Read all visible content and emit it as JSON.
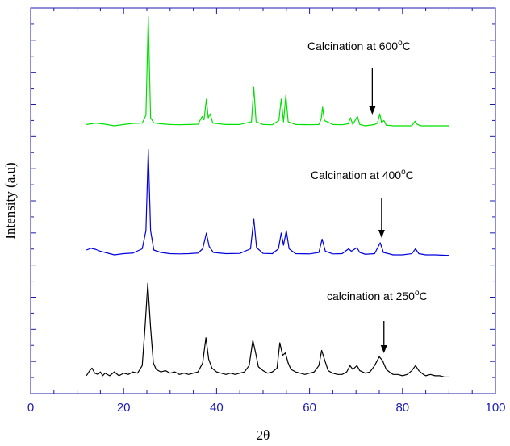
{
  "chart_data": {
    "type": "line",
    "title": "",
    "xlabel": "2θ",
    "ylabel": "Intensity (a.u)",
    "xlim": [
      0,
      100
    ],
    "x_ticks": [
      0,
      20,
      40,
      60,
      80,
      100
    ],
    "y_ticks_labeled": false,
    "grid": false,
    "axis_color": "#1a1ab0",
    "x_range_of_data": [
      12,
      90
    ],
    "series": [
      {
        "color": "#00e000",
        "annotation": "Calcination at 600",
        "arrow_at_x": 73.5,
        "points": [
          [
            12,
            0.01
          ],
          [
            14,
            0.02
          ],
          [
            16,
            0.012
          ],
          [
            18,
            0.0
          ],
          [
            20,
            0.01
          ],
          [
            22,
            0.018
          ],
          [
            24,
            0.02
          ],
          [
            24.8,
            0.08
          ],
          [
            25.3,
            0.82
          ],
          [
            25.8,
            0.06
          ],
          [
            26.5,
            0.022
          ],
          [
            28,
            0.015
          ],
          [
            30,
            0.01
          ],
          [
            32,
            0.008
          ],
          [
            34,
            0.01
          ],
          [
            36,
            0.012
          ],
          [
            36.9,
            0.07
          ],
          [
            37.3,
            0.045
          ],
          [
            37.8,
            0.2
          ],
          [
            38.2,
            0.06
          ],
          [
            38.6,
            0.09
          ],
          [
            39.2,
            0.02
          ],
          [
            42,
            0.01
          ],
          [
            45,
            0.01
          ],
          [
            47.5,
            0.03
          ],
          [
            48.0,
            0.29
          ],
          [
            48.5,
            0.03
          ],
          [
            50,
            0.01
          ],
          [
            52,
            0.008
          ],
          [
            53.4,
            0.04
          ],
          [
            53.9,
            0.2
          ],
          [
            54.4,
            0.03
          ],
          [
            54.9,
            0.23
          ],
          [
            55.4,
            0.03
          ],
          [
            57,
            0.01
          ],
          [
            60,
            0.008
          ],
          [
            62,
            0.01
          ],
          [
            62.5,
            0.05
          ],
          [
            62.8,
            0.14
          ],
          [
            63.2,
            0.04
          ],
          [
            65,
            0.01
          ],
          [
            67,
            0.008
          ],
          [
            68.3,
            0.015
          ],
          [
            68.8,
            0.06
          ],
          [
            69.3,
            0.01
          ],
          [
            70.3,
            0.07
          ],
          [
            70.8,
            0.01
          ],
          [
            72,
            0.0
          ],
          [
            74,
            0.01
          ],
          [
            74.6,
            0.02
          ],
          [
            75.1,
            0.09
          ],
          [
            75.5,
            0.025
          ],
          [
            76,
            0.04
          ],
          [
            76.5,
            0.005
          ],
          [
            78,
            0.0
          ],
          [
            80,
            0.0
          ],
          [
            82,
            0.0
          ],
          [
            82.7,
            0.035
          ],
          [
            83.2,
            0.01
          ],
          [
            84,
            0.0
          ],
          [
            86,
            0.0
          ],
          [
            88,
            0.0
          ],
          [
            90,
            0.0
          ]
        ]
      },
      {
        "color": "#0000dd",
        "annotation": "Calcination at 400",
        "arrow_at_x": 75.5,
        "points": [
          [
            12,
            0.04
          ],
          [
            13,
            0.055
          ],
          [
            14,
            0.045
          ],
          [
            15,
            0.03
          ],
          [
            16,
            0.02
          ],
          [
            18,
            0.0
          ],
          [
            20,
            0.01
          ],
          [
            22,
            0.015
          ],
          [
            24,
            0.05
          ],
          [
            24.8,
            0.2
          ],
          [
            25.3,
            0.87
          ],
          [
            25.8,
            0.2
          ],
          [
            26.5,
            0.04
          ],
          [
            28,
            0.02
          ],
          [
            30,
            0.01
          ],
          [
            32,
            0.008
          ],
          [
            34,
            0.01
          ],
          [
            36,
            0.015
          ],
          [
            37,
            0.05
          ],
          [
            37.8,
            0.18
          ],
          [
            38.4,
            0.07
          ],
          [
            39.3,
            0.02
          ],
          [
            42,
            0.01
          ],
          [
            45,
            0.012
          ],
          [
            47.3,
            0.05
          ],
          [
            48.0,
            0.3
          ],
          [
            48.6,
            0.06
          ],
          [
            50,
            0.012
          ],
          [
            52,
            0.01
          ],
          [
            53.3,
            0.05
          ],
          [
            53.9,
            0.18
          ],
          [
            54.4,
            0.08
          ],
          [
            55.0,
            0.2
          ],
          [
            55.6,
            0.05
          ],
          [
            57,
            0.01
          ],
          [
            60,
            0.008
          ],
          [
            62,
            0.02
          ],
          [
            62.7,
            0.13
          ],
          [
            63.4,
            0.03
          ],
          [
            65,
            0.008
          ],
          [
            67,
            0.01
          ],
          [
            68.4,
            0.05
          ],
          [
            69,
            0.03
          ],
          [
            70.2,
            0.06
          ],
          [
            70.8,
            0.02
          ],
          [
            72,
            0.005
          ],
          [
            74,
            0.01
          ],
          [
            75.2,
            0.1
          ],
          [
            75.9,
            0.02
          ],
          [
            78,
            0.0
          ],
          [
            80,
            0.0
          ],
          [
            82,
            0.01
          ],
          [
            82.8,
            0.05
          ],
          [
            83.5,
            0.01
          ],
          [
            85,
            0.0
          ],
          [
            87,
            0.0
          ],
          [
            90,
            -0.005
          ]
        ]
      },
      {
        "color": "#000000",
        "annotation": "calcination at 250",
        "arrow_at_x": 76,
        "points": [
          [
            12,
            0.02
          ],
          [
            12.7,
            0.06
          ],
          [
            13.2,
            0.08
          ],
          [
            13.8,
            0.04
          ],
          [
            14.5,
            0.03
          ],
          [
            15,
            0.05
          ],
          [
            15.5,
            0.02
          ],
          [
            16,
            0.04
          ],
          [
            17,
            0.02
          ],
          [
            18,
            0.05
          ],
          [
            19,
            0.02
          ],
          [
            20,
            0.04
          ],
          [
            21,
            0.03
          ],
          [
            22,
            0.05
          ],
          [
            23,
            0.04
          ],
          [
            24,
            0.1
          ],
          [
            24.6,
            0.4
          ],
          [
            25.2,
            0.75
          ],
          [
            25.8,
            0.4
          ],
          [
            26.4,
            0.12
          ],
          [
            27,
            0.07
          ],
          [
            28,
            0.05
          ],
          [
            29,
            0.06
          ],
          [
            30,
            0.04
          ],
          [
            31,
            0.05
          ],
          [
            32,
            0.03
          ],
          [
            33,
            0.04
          ],
          [
            34,
            0.03
          ],
          [
            35,
            0.04
          ],
          [
            36,
            0.05
          ],
          [
            37,
            0.12
          ],
          [
            37.7,
            0.32
          ],
          [
            38.3,
            0.15
          ],
          [
            39,
            0.08
          ],
          [
            40,
            0.05
          ],
          [
            41,
            0.04
          ],
          [
            42,
            0.03
          ],
          [
            43,
            0.04
          ],
          [
            44,
            0.03
          ],
          [
            45,
            0.04
          ],
          [
            46,
            0.05
          ],
          [
            47,
            0.1
          ],
          [
            47.8,
            0.3
          ],
          [
            48.4,
            0.2
          ],
          [
            49,
            0.09
          ],
          [
            50,
            0.06
          ],
          [
            51,
            0.04
          ],
          [
            52,
            0.05
          ],
          [
            53,
            0.08
          ],
          [
            53.6,
            0.28
          ],
          [
            54.2,
            0.18
          ],
          [
            54.8,
            0.2
          ],
          [
            55.4,
            0.12
          ],
          [
            56,
            0.07
          ],
          [
            57,
            0.05
          ],
          [
            58,
            0.04
          ],
          [
            59,
            0.03
          ],
          [
            60,
            0.04
          ],
          [
            61,
            0.05
          ],
          [
            62,
            0.1
          ],
          [
            62.6,
            0.22
          ],
          [
            63.2,
            0.15
          ],
          [
            64,
            0.06
          ],
          [
            65,
            0.04
          ],
          [
            66,
            0.03
          ],
          [
            67,
            0.03
          ],
          [
            68,
            0.05
          ],
          [
            68.7,
            0.1
          ],
          [
            69.3,
            0.07
          ],
          [
            70.2,
            0.1
          ],
          [
            70.8,
            0.06
          ],
          [
            72,
            0.04
          ],
          [
            73,
            0.05
          ],
          [
            74,
            0.1
          ],
          [
            75,
            0.17
          ],
          [
            75.7,
            0.14
          ],
          [
            76.5,
            0.07
          ],
          [
            77.5,
            0.04
          ],
          [
            78,
            0.03
          ],
          [
            79,
            0.03
          ],
          [
            80,
            0.02
          ],
          [
            81,
            0.03
          ],
          [
            82,
            0.06
          ],
          [
            82.8,
            0.1
          ],
          [
            83.5,
            0.06
          ],
          [
            84.5,
            0.03
          ],
          [
            85,
            0.02
          ],
          [
            86,
            0.03
          ],
          [
            87,
            0.02
          ],
          [
            88,
            0.02
          ],
          [
            89,
            0.01
          ],
          [
            90,
            0.01
          ]
        ]
      }
    ]
  }
}
